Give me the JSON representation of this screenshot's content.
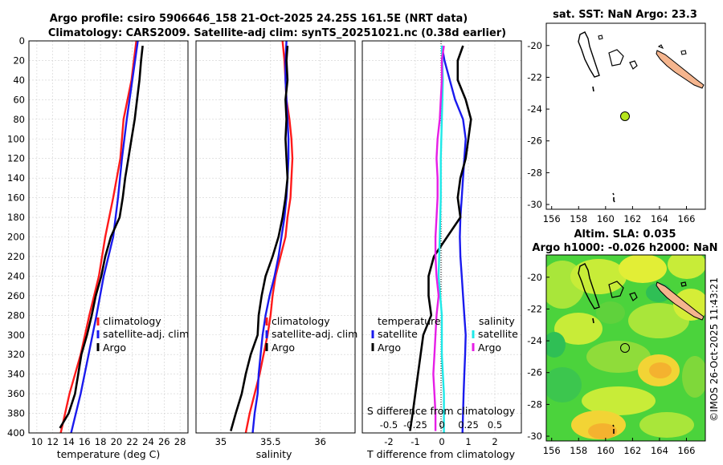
{
  "titles": {
    "main_line1": "Argo profile: csiro 5906646_158 21-Oct-2025 24.25S 161.5E (NRT data)",
    "main_line2": "Climatology: CARS2009. Satellite-adj clim: synTS_20251021.nc (0.38d earlier)",
    "sst_map": "sat. SST: NaN Argo: 23.3",
    "sla_map_line1": "Altim. SLA: 0.035",
    "sla_map_line2": "Argo h1000: -0.026 h2000: NaN"
  },
  "stamp": "©IMOS 26-Oct-2025 11:43:21",
  "colors": {
    "climatology": "#ff1a1a",
    "satellite": "#1a1aee",
    "argo": "#000000",
    "salinity_satellite": "#1fe8e8",
    "salinity_argo": "#e61ee6",
    "land_sst": "#f5b58e",
    "float_marker": "#b5e61d",
    "grid": "#d0d0d0"
  },
  "chart_data": [
    {
      "type": "line",
      "name": "temperature-panel",
      "xlabel": "temperature (deg C)",
      "ylabel": "",
      "xlim": [
        9,
        29
      ],
      "ylim": [
        400,
        0
      ],
      "xticks": [
        10,
        12,
        14,
        16,
        18,
        20,
        22,
        24,
        26,
        28
      ],
      "yticks": [
        0,
        20,
        40,
        60,
        80,
        100,
        120,
        140,
        160,
        180,
        200,
        220,
        240,
        260,
        280,
        300,
        320,
        340,
        360,
        380,
        400
      ],
      "grid": true,
      "legend": {
        "position": "lower-right",
        "entries": [
          "climatology",
          "satellite-adj. clim",
          "Argo"
        ]
      },
      "series": [
        {
          "name": "climatology",
          "color": "red",
          "depth": [
            0,
            40,
            80,
            120,
            160,
            200,
            240,
            280,
            320,
            360,
            400
          ],
          "values": [
            22.5,
            21.9,
            20.9,
            20.5,
            19.6,
            18.6,
            17.8,
            16.6,
            15.5,
            14.1,
            13.0
          ]
        },
        {
          "name": "satellite-adj. clim",
          "color": "blue",
          "depth": [
            0,
            40,
            80,
            120,
            160,
            200,
            240,
            280,
            320,
            360,
            400
          ],
          "values": [
            22.7,
            22.0,
            21.3,
            20.7,
            20.2,
            19.6,
            18.4,
            17.5,
            16.5,
            15.5,
            14.3
          ]
        },
        {
          "name": "Argo",
          "color": "black",
          "depth": [
            5,
            20,
            40,
            60,
            80,
            100,
            120,
            140,
            160,
            180,
            200,
            220,
            240,
            260,
            280,
            300,
            320,
            340,
            360,
            380,
            395
          ],
          "values": [
            23.3,
            23.1,
            22.9,
            22.6,
            22.3,
            21.9,
            21.5,
            21.1,
            20.8,
            20.4,
            19.3,
            18.6,
            18.1,
            17.4,
            16.9,
            16.3,
            15.6,
            15.2,
            14.8,
            14.0,
            12.9
          ]
        }
      ]
    },
    {
      "type": "line",
      "name": "salinity-panel",
      "xlabel": "salinity",
      "xlim": [
        34.75,
        36.35
      ],
      "ylim": [
        400,
        0
      ],
      "xticks": [
        35,
        35.5,
        36
      ],
      "tick_labels": [
        "35",
        "35.5",
        "36"
      ],
      "grid": true,
      "legend": {
        "position": "lower-right",
        "entries": [
          "climatology",
          "satellite-adj. clim",
          "Argo"
        ]
      },
      "series": [
        {
          "name": "climatology",
          "color": "red",
          "depth": [
            0,
            20,
            40,
            60,
            80,
            100,
            120,
            140,
            160,
            180,
            200,
            220,
            240,
            260,
            280,
            300,
            320,
            340,
            360,
            380,
            400
          ],
          "values": [
            35.62,
            35.64,
            35.65,
            35.66,
            35.69,
            35.71,
            35.72,
            35.71,
            35.7,
            35.67,
            35.65,
            35.6,
            35.55,
            35.52,
            35.5,
            35.47,
            35.43,
            35.39,
            35.34,
            35.29,
            35.25
          ]
        },
        {
          "name": "satellite-adj. clim",
          "color": "blue",
          "depth": [
            0,
            20,
            40,
            60,
            80,
            100,
            120,
            140,
            160,
            180,
            200,
            220,
            240,
            260,
            280,
            300,
            320,
            340,
            360,
            380,
            400
          ],
          "values": [
            35.66,
            35.65,
            35.65,
            35.66,
            35.67,
            35.68,
            35.68,
            35.67,
            35.66,
            35.64,
            35.61,
            35.58,
            35.54,
            35.49,
            35.45,
            35.42,
            35.4,
            35.38,
            35.37,
            35.34,
            35.32
          ]
        },
        {
          "name": "Argo",
          "color": "black",
          "depth": [
            5,
            20,
            40,
            60,
            80,
            100,
            120,
            140,
            160,
            180,
            200,
            220,
            240,
            260,
            280,
            300,
            320,
            340,
            360,
            380,
            398
          ],
          "values": [
            35.67,
            35.66,
            35.67,
            35.65,
            35.66,
            35.65,
            35.66,
            35.67,
            35.65,
            35.62,
            35.58,
            35.52,
            35.45,
            35.41,
            35.38,
            35.37,
            35.3,
            35.25,
            35.21,
            35.15,
            35.1
          ]
        }
      ]
    },
    {
      "type": "line",
      "name": "difference-panel",
      "xlabel": "T difference from climatology",
      "xlabel_top": "S difference from climatology",
      "xlim": [
        -3,
        3
      ],
      "ylim": [
        400,
        0
      ],
      "xticks": [
        -2,
        -1,
        0,
        1,
        2
      ],
      "secondary_xticks": [
        -0.5,
        -0.25,
        0,
        0.25,
        0.5
      ],
      "secondary_tick_labels": [
        "-0.5",
        "-0.25",
        "0",
        "0.25",
        "0.5"
      ],
      "grid": true,
      "legend": {
        "position": "center",
        "groups": [
          {
            "title": "temperature",
            "entries": [
              "satellite",
              "Argo"
            ]
          },
          {
            "title": "salinity",
            "entries": [
              "satellite",
              "Argo"
            ]
          }
        ]
      },
      "series": [
        {
          "name": "temperature satellite",
          "color": "blue",
          "depth": [
            5,
            20,
            40,
            60,
            80,
            100,
            120,
            140,
            160,
            180,
            200,
            220,
            240,
            260,
            280,
            300,
            320,
            340,
            360,
            380,
            400
          ],
          "values": [
            0,
            0.1,
            0.3,
            0.5,
            0.8,
            0.9,
            0.85,
            0.8,
            0.75,
            0.7,
            0.68,
            0.7,
            0.75,
            0.8,
            0.85,
            0.9,
            0.88,
            0.85,
            0.82,
            0.8,
            0.78
          ]
        },
        {
          "name": "temperature Argo",
          "color": "black",
          "depth": [
            5,
            20,
            40,
            60,
            80,
            100,
            120,
            140,
            160,
            180,
            200,
            220,
            240,
            260,
            280,
            300,
            320,
            340,
            360,
            380,
            398
          ],
          "values": [
            0.8,
            0.6,
            0.6,
            0.9,
            1.1,
            1.0,
            0.9,
            0.7,
            0.6,
            0.7,
            0.2,
            -0.3,
            -0.5,
            -0.5,
            -0.4,
            -0.7,
            -0.8,
            -0.9,
            -1.0,
            -1.1,
            -1.2
          ]
        },
        {
          "name": "salinity satellite",
          "color": "cyan",
          "depth": [
            5,
            40,
            80,
            120,
            160,
            200,
            240,
            280,
            320,
            360,
            400
          ],
          "values": [
            0,
            0.01,
            0.0,
            -0.01,
            -0.01,
            -0.02,
            -0.03,
            0.0,
            0.0,
            0.02,
            0.02
          ]
        },
        {
          "name": "salinity Argo",
          "color": "magenta",
          "depth": [
            5,
            20,
            40,
            60,
            80,
            100,
            120,
            140,
            160,
            180,
            200,
            220,
            240,
            260,
            280,
            300,
            320,
            340,
            360,
            380,
            398
          ],
          "values": [
            0.02,
            0.0,
            0.0,
            -0.01,
            -0.02,
            -0.04,
            -0.05,
            -0.04,
            -0.04,
            -0.05,
            -0.06,
            -0.06,
            -0.05,
            -0.03,
            -0.05,
            -0.06,
            -0.07,
            -0.08,
            -0.07,
            -0.06,
            -0.06
          ]
        }
      ]
    },
    {
      "type": "map",
      "name": "sst-map",
      "xlim": [
        155.6,
        167.4
      ],
      "ylim": [
        -30.3,
        -18.6
      ],
      "xticks": [
        156,
        158,
        160,
        162,
        164,
        166
      ],
      "yticks": [
        -20,
        -22,
        -24,
        -26,
        -28,
        -30
      ],
      "float_position": {
        "lon": 161.5,
        "lat": -24.25
      }
    },
    {
      "type": "map",
      "name": "sla-map",
      "xlim": [
        155.6,
        167.4
      ],
      "ylim": [
        -30.3,
        -18.6
      ],
      "xticks": [
        156,
        158,
        160,
        162,
        164,
        166
      ],
      "yticks": [
        -20,
        -22,
        -24,
        -26,
        -28,
        -30
      ],
      "float_position": {
        "lon": 161.5,
        "lat": -24.25
      }
    }
  ]
}
